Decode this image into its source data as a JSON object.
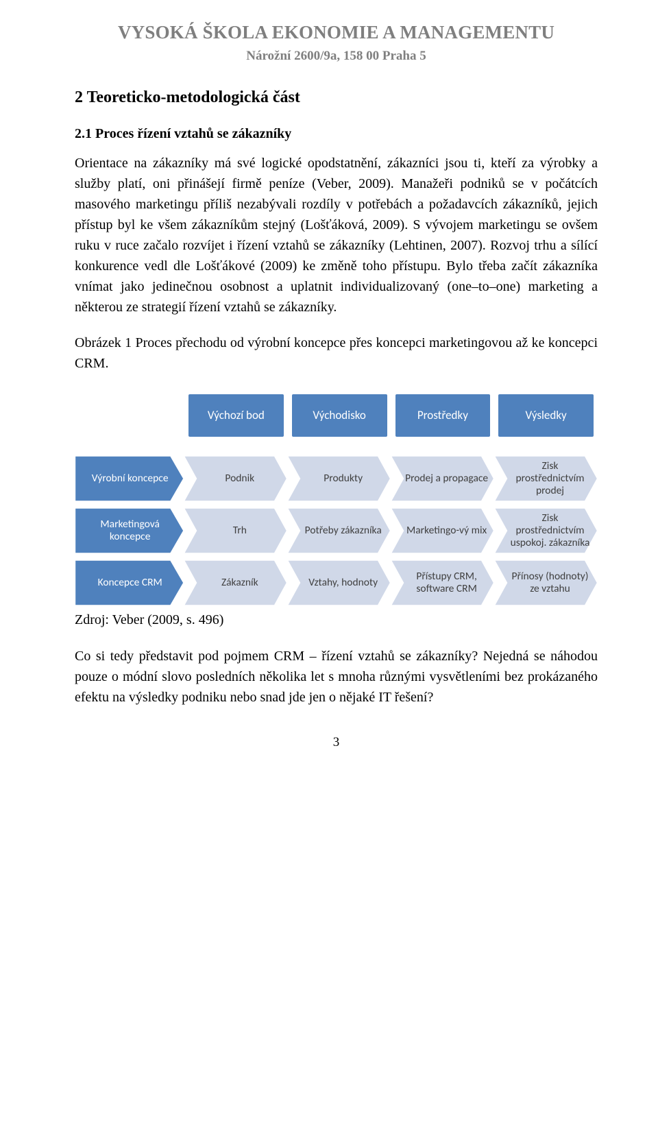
{
  "header": {
    "institution": "VYSOKÁ ŠKOLA EKONOMIE A MANAGEMENTU",
    "address": "Nárožní 2600/9a, 158 00 Praha 5"
  },
  "headings": {
    "section": "2  Teoreticko-metodologická část",
    "subsection": "2.1 Proces řízení vztahů se zákazníky"
  },
  "paragraphs": {
    "p1": "Orientace na zákazníky má své logické opodstatnění, zákazníci jsou ti, kteří za výrobky a služby platí, oni přinášejí firmě peníze (Veber, 2009). Manažeři podniků se v počátcích masového marketingu příliš nezabývali rozdíly v potřebách a požadavcích zákazníků, jejich přístup byl ke všem zákazníkům stejný (Lošťáková, 2009). S vývojem marketingu se ovšem ruku v ruce začalo rozvíjet i řízení vztahů se zákazníky (Lehtinen, 2007). Rozvoj trhu a sílící konkurence vedl dle Lošťákové (2009) ke změně toho přístupu. Bylo třeba začít zákazníka vnímat jako jedinečnou osobnost a uplatnit individualizovaný (one–to–one) marketing a některou ze strategií řízení vztahů se zákazníky.",
    "fig_caption": "Obrázek 1 Proces přechodu od výrobní koncepce přes koncepci marketingovou až ke koncepci CRM.",
    "source": "Zdroj: Veber (2009, s. 496)",
    "p2": "Co si tedy představit pod pojmem CRM – řízení vztahů se zákazníky? Nejedná se náhodou pouze o módní slovo posledních několika let s mnoha různými vysvětleními bez prokázaného efektu na výsledky podniku nebo snad jde jen o nějaké IT řešení?"
  },
  "diagram": {
    "headers": [
      "Výchozí bod",
      "Východisko",
      "Prostředky",
      "Výsledky"
    ],
    "rows": [
      {
        "label": "Výrobní koncepce",
        "cells": [
          "Podnik",
          "Produkty",
          "Prodej a propagace",
          "Zisk prostřednictvím prodej"
        ]
      },
      {
        "label": "Marketingová koncepce",
        "cells": [
          "Trh",
          "Potřeby zákazníka",
          "Marketingo-vý mix",
          "Zisk prostřednictvím uspokoj. zákazníka"
        ]
      },
      {
        "label": "Koncepce CRM",
        "cells": [
          "Zákazník",
          "Vztahy, hodnoty",
          "Přístupy CRM, software CRM",
          "Přínosy (hodnoty) ze vztahu"
        ]
      }
    ],
    "colors": {
      "header_fill": "#4f81bd",
      "header_text": "#ffffff",
      "row_label_fill": "#4f81bd",
      "row_label_text": "#ffffff",
      "cell_fill": "#d0d8e8",
      "cell_stroke": "#ffffff",
      "cell_text": "#404040"
    },
    "font_family": "Calibri",
    "header_fontsize": 17,
    "cell_fontsize": 15.5
  },
  "page_number": "3"
}
